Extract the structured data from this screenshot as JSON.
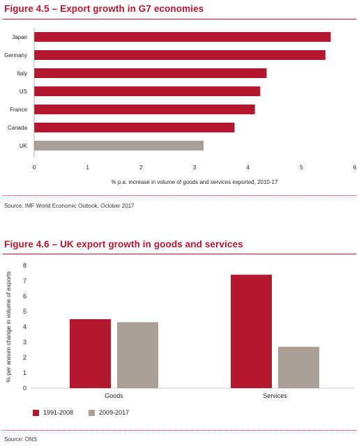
{
  "figure_1": {
    "title": "Figure 4.5 – Export growth in G7 economies",
    "source": "Source: IMF World Economic Outlook, October 2017"
  },
  "figure_2": {
    "title": "Figure 4.6 – UK export growth in goods and services",
    "source": "Source: ONS"
  },
  "colors": {
    "accent": "#b3182f",
    "grey": "#ab9e94"
  },
  "chart_data": [
    {
      "type": "bar",
      "orientation": "horizontal",
      "categories": [
        "Japan",
        "Germany",
        "Italy",
        "US",
        "France",
        "Canada",
        "UK"
      ],
      "values": [
        5.55,
        5.45,
        4.35,
        4.23,
        4.13,
        3.75,
        3.17
      ],
      "bar_colors": [
        "#b3182f",
        "#b3182f",
        "#b3182f",
        "#b3182f",
        "#b3182f",
        "#b3182f",
        "#ab9e94"
      ],
      "xlabel": "% p.a. increase in volume of goods and services exported, 2010-17",
      "ylabel": "",
      "xlim": [
        0,
        6
      ],
      "xticks": [
        0,
        1,
        2,
        3,
        4,
        5,
        6
      ],
      "grid": false
    },
    {
      "type": "bar",
      "orientation": "vertical",
      "categories": [
        "Goods",
        "Services"
      ],
      "series": [
        {
          "name": "1991-2008",
          "values": [
            4.5,
            7.4
          ],
          "color": "#b3182f"
        },
        {
          "name": "2009-2017",
          "values": [
            4.3,
            2.7
          ],
          "color": "#ab9e94"
        }
      ],
      "xlabel": "",
      "ylabel": "% per annum change in volume of exports",
      "ylim": [
        0,
        8
      ],
      "yticks": [
        0,
        1,
        2,
        3,
        4,
        5,
        6,
        7,
        8
      ],
      "legend": "bottom-left",
      "grid": false
    }
  ]
}
